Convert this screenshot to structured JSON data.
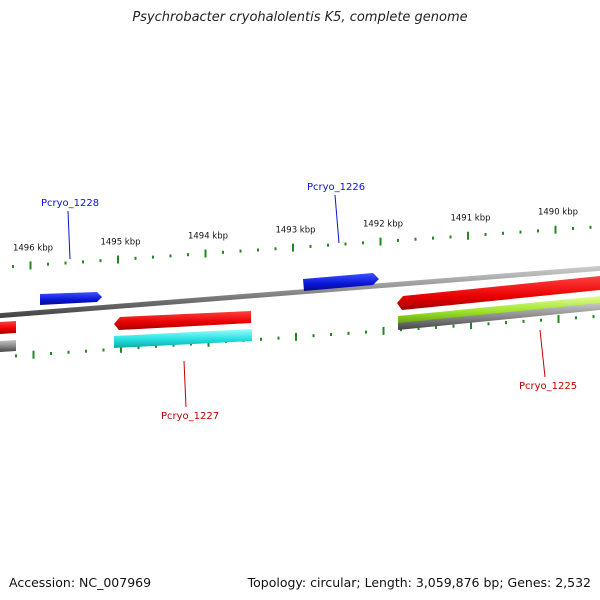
{
  "title": "Psychrobacter cryohalolentis K5, complete genome",
  "footer": {
    "accession": "Accession: NC_007969",
    "summary": "Topology: circular; Length: 3,059,876 bp; Genes: 2,532"
  },
  "scale": {
    "unit": "kbp",
    "ticks_kbp": [
      1496,
      1495,
      1494,
      1493,
      1492,
      1491,
      1490
    ]
  },
  "colors": {
    "backbone": "#8a8a8a",
    "tick": "#1f8a1f",
    "forward_gene": "#0a14d8",
    "reverse_gene": "#e80000",
    "cds_feature": "#22e0e0",
    "green_feature": "#9be02a",
    "gray_feature": "#707070",
    "label_forward": "#0a14d8",
    "label_reverse": "#c00000"
  },
  "genes": [
    {
      "id": "Pcryo_1228",
      "strand": "forward"
    },
    {
      "id": "Pcryo_1226",
      "strand": "forward"
    },
    {
      "id": "Pcryo_1227",
      "strand": "reverse"
    },
    {
      "id": "Pcryo_1225",
      "strand": "reverse"
    }
  ]
}
